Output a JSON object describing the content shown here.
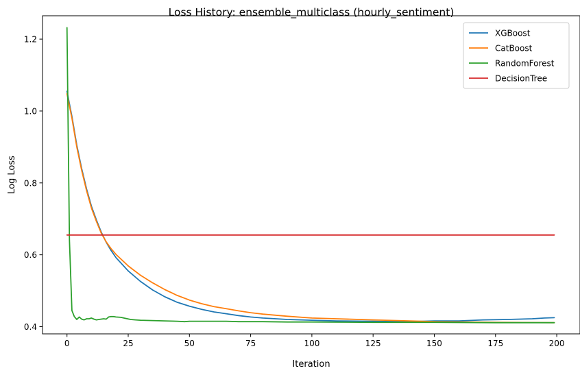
{
  "chart_data": {
    "type": "line",
    "title": "Loss History: ensemble_multiclass (hourly_sentiment)",
    "xlabel": "Iteration",
    "ylabel": "Log Loss",
    "xlim": [
      -10,
      209.5
    ],
    "ylim": [
      0.38,
      1.265
    ],
    "xticks": [
      0,
      25,
      50,
      75,
      100,
      125,
      150,
      175,
      200
    ],
    "yticks": [
      0.4,
      0.6,
      0.8,
      1.0,
      1.2
    ],
    "xtick_labels": [
      "0",
      "25",
      "50",
      "75",
      "100",
      "125",
      "150",
      "175",
      "200"
    ],
    "ytick_labels": [
      "0.4",
      "0.6",
      "0.8",
      "1.0",
      "1.2"
    ],
    "grid": false,
    "legend_position": "top-right",
    "series": [
      {
        "name": "XGBoost",
        "color": "#1f77b4",
        "points": [
          [
            0,
            1.055
          ],
          [
            2,
            0.985
          ],
          [
            4,
            0.905
          ],
          [
            6,
            0.84
          ],
          [
            8,
            0.783
          ],
          [
            10,
            0.735
          ],
          [
            12,
            0.697
          ],
          [
            14,
            0.663
          ],
          [
            16,
            0.635
          ],
          [
            18,
            0.612
          ],
          [
            20,
            0.592
          ],
          [
            25,
            0.555
          ],
          [
            30,
            0.526
          ],
          [
            35,
            0.502
          ],
          [
            40,
            0.483
          ],
          [
            45,
            0.468
          ],
          [
            50,
            0.457
          ],
          [
            55,
            0.448
          ],
          [
            60,
            0.441
          ],
          [
            65,
            0.436
          ],
          [
            70,
            0.431
          ],
          [
            75,
            0.427
          ],
          [
            80,
            0.424
          ],
          [
            90,
            0.42
          ],
          [
            100,
            0.418
          ],
          [
            110,
            0.416
          ],
          [
            125,
            0.415
          ],
          [
            140,
            0.414
          ],
          [
            150,
            0.416
          ],
          [
            160,
            0.416
          ],
          [
            170,
            0.419
          ],
          [
            180,
            0.42
          ],
          [
            190,
            0.422
          ],
          [
            195,
            0.424
          ],
          [
            199,
            0.425
          ]
        ]
      },
      {
        "name": "CatBoost",
        "color": "#ff7f0e",
        "points": [
          [
            0,
            1.048
          ],
          [
            2,
            0.98
          ],
          [
            4,
            0.9
          ],
          [
            6,
            0.835
          ],
          [
            8,
            0.778
          ],
          [
            10,
            0.73
          ],
          [
            12,
            0.693
          ],
          [
            14,
            0.66
          ],
          [
            16,
            0.636
          ],
          [
            18,
            0.617
          ],
          [
            20,
            0.601
          ],
          [
            25,
            0.569
          ],
          [
            30,
            0.543
          ],
          [
            35,
            0.522
          ],
          [
            40,
            0.503
          ],
          [
            45,
            0.487
          ],
          [
            50,
            0.474
          ],
          [
            55,
            0.464
          ],
          [
            60,
            0.456
          ],
          [
            65,
            0.45
          ],
          [
            70,
            0.444
          ],
          [
            75,
            0.439
          ],
          [
            80,
            0.435
          ],
          [
            90,
            0.429
          ],
          [
            100,
            0.424
          ],
          [
            110,
            0.422
          ],
          [
            125,
            0.419
          ],
          [
            140,
            0.416
          ],
          [
            150,
            0.414
          ],
          [
            175,
            0.412
          ],
          [
            199,
            0.411
          ]
        ]
      },
      {
        "name": "RandomForest",
        "color": "#2ca02c",
        "points": [
          [
            0,
            1.232
          ],
          [
            1,
            0.64
          ],
          [
            2,
            0.445
          ],
          [
            3,
            0.428
          ],
          [
            4,
            0.42
          ],
          [
            5,
            0.427
          ],
          [
            6,
            0.421
          ],
          [
            7,
            0.419
          ],
          [
            8,
            0.422
          ],
          [
            9,
            0.422
          ],
          [
            10,
            0.424
          ],
          [
            11,
            0.421
          ],
          [
            12,
            0.419
          ],
          [
            13,
            0.42
          ],
          [
            14,
            0.421
          ],
          [
            15,
            0.422
          ],
          [
            16,
            0.421
          ],
          [
            17,
            0.427
          ],
          [
            18,
            0.428
          ],
          [
            19,
            0.428
          ],
          [
            20,
            0.427
          ],
          [
            22,
            0.426
          ],
          [
            24,
            0.423
          ],
          [
            26,
            0.42
          ],
          [
            28,
            0.419
          ],
          [
            30,
            0.418
          ],
          [
            35,
            0.417
          ],
          [
            40,
            0.416
          ],
          [
            45,
            0.415
          ],
          [
            48,
            0.414
          ],
          [
            50,
            0.415
          ],
          [
            55,
            0.415
          ],
          [
            60,
            0.415
          ],
          [
            65,
            0.415
          ],
          [
            70,
            0.414
          ],
          [
            80,
            0.414
          ],
          [
            90,
            0.413
          ],
          [
            100,
            0.413
          ],
          [
            125,
            0.412
          ],
          [
            150,
            0.412
          ],
          [
            175,
            0.411
          ],
          [
            199,
            0.411
          ]
        ]
      },
      {
        "name": "DecisionTree",
        "color": "#d62728",
        "points": [
          [
            0,
            0.655
          ],
          [
            199,
            0.655
          ]
        ]
      }
    ]
  }
}
